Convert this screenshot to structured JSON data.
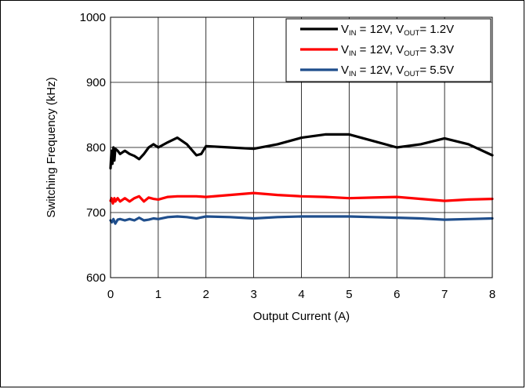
{
  "chart_data": {
    "type": "line",
    "title": "",
    "xlabel": "Output Current (A)",
    "ylabel": "Switching Frequency (kHz)",
    "xlim": [
      0,
      8
    ],
    "ylim": [
      600,
      1000
    ],
    "x_ticks": [
      0,
      1,
      2,
      3,
      4,
      5,
      6,
      7,
      8
    ],
    "y_ticks": [
      600,
      700,
      800,
      900,
      1000
    ],
    "grid": true,
    "legend_position": "top-right",
    "series": [
      {
        "name": "V_IN = 12V, V_OUT= 1.2V",
        "name_parts": {
          "v1": "V",
          "s1": "IN",
          "mid": " = 12V, V",
          "s2": "OUT",
          "end": "= 1.2V"
        },
        "color": "#000000",
        "x": [
          0.0,
          0.02,
          0.04,
          0.06,
          0.08,
          0.1,
          0.15,
          0.2,
          0.3,
          0.4,
          0.5,
          0.6,
          0.7,
          0.8,
          0.9,
          1.0,
          1.2,
          1.4,
          1.6,
          1.8,
          1.9,
          2.0,
          2.5,
          3.0,
          3.5,
          4.0,
          4.5,
          5.0,
          5.5,
          6.0,
          6.5,
          7.0,
          7.5,
          8.0
        ],
        "y": [
          768,
          795,
          775,
          800,
          780,
          798,
          795,
          790,
          795,
          790,
          787,
          782,
          790,
          800,
          805,
          800,
          808,
          815,
          805,
          788,
          790,
          802,
          800,
          798,
          805,
          815,
          820,
          820,
          810,
          800,
          805,
          814,
          805,
          788
        ]
      },
      {
        "name": "V_IN = 12V, V_OUT= 3.3V",
        "name_parts": {
          "v1": "V",
          "s1": "IN",
          "mid": " = 12V, V",
          "s2": "OUT",
          "end": "= 3.3V"
        },
        "color": "#ff0000",
        "x": [
          0.0,
          0.02,
          0.05,
          0.08,
          0.1,
          0.15,
          0.2,
          0.3,
          0.4,
          0.5,
          0.6,
          0.7,
          0.8,
          0.9,
          1.0,
          1.2,
          1.4,
          1.6,
          1.8,
          2.0,
          2.5,
          3.0,
          3.5,
          4.0,
          4.5,
          5.0,
          5.5,
          6.0,
          6.5,
          7.0,
          7.5,
          8.0
        ],
        "y": [
          718,
          722,
          714,
          722,
          717,
          722,
          717,
          722,
          717,
          722,
          725,
          717,
          723,
          721,
          720,
          724,
          725,
          725,
          725,
          724,
          727,
          730,
          727,
          725,
          724,
          722,
          723,
          724,
          721,
          718,
          720,
          721
        ]
      },
      {
        "name": "V_IN = 12V, V_OUT= 5.5V",
        "name_parts": {
          "v1": "V",
          "s1": "IN",
          "mid": " = 12V, V",
          "s2": "OUT",
          "end": "= 5.5V"
        },
        "color": "#1f4e8c",
        "x": [
          0.0,
          0.03,
          0.06,
          0.1,
          0.15,
          0.2,
          0.3,
          0.4,
          0.5,
          0.6,
          0.7,
          0.8,
          0.9,
          1.0,
          1.2,
          1.4,
          1.6,
          1.8,
          2.0,
          2.5,
          3.0,
          3.5,
          4.0,
          4.5,
          5.0,
          5.5,
          6.0,
          6.5,
          7.0,
          7.5,
          8.0
        ],
        "y": [
          688,
          685,
          690,
          683,
          689,
          690,
          688,
          690,
          688,
          692,
          688,
          689,
          691,
          690,
          693,
          694,
          693,
          691,
          694,
          693,
          691,
          693,
          694,
          694,
          694,
          693,
          692,
          691,
          689,
          690,
          691
        ]
      }
    ]
  }
}
